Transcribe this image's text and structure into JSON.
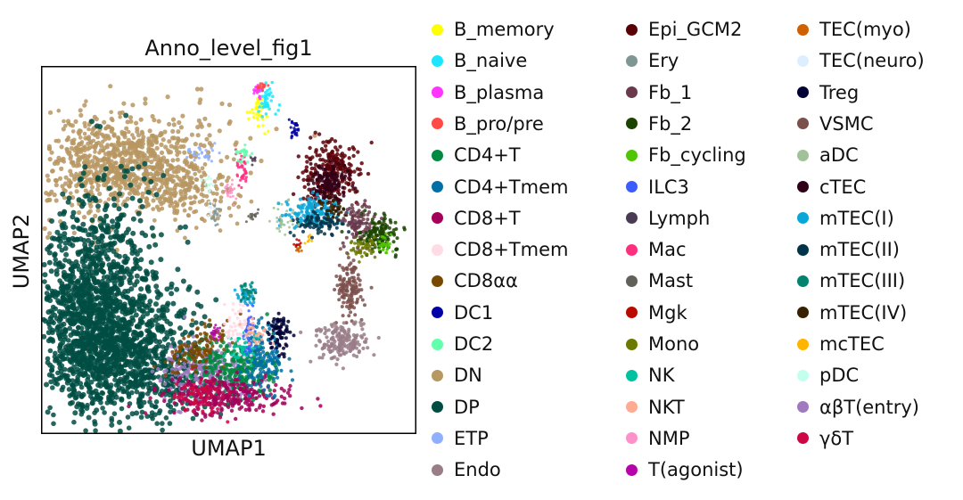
{
  "chart_data": {
    "type": "scatter",
    "title": "Anno_level_fig1",
    "xlabel": "UMAP1",
    "ylabel": "UMAP2",
    "grid": false,
    "xticks": false,
    "yticks": false,
    "legend_placement": "right, outside the plot, 3 columns",
    "legend": [
      {
        "name": "B_memory",
        "color": "#ffff00"
      },
      {
        "name": "B_naive",
        "color": "#1ce6ff"
      },
      {
        "name": "B_plasma",
        "color": "#ff34ff"
      },
      {
        "name": "B_pro/pre",
        "color": "#ff4a46"
      },
      {
        "name": "CD4+T",
        "color": "#008941"
      },
      {
        "name": "CD4+Tmem",
        "color": "#006fa6"
      },
      {
        "name": "CD8+T",
        "color": "#a30059"
      },
      {
        "name": "CD8+Tmem",
        "color": "#ffdbe5"
      },
      {
        "name": "CD8αα",
        "color": "#7a4900"
      },
      {
        "name": "DC1",
        "color": "#0000a6"
      },
      {
        "name": "DC2",
        "color": "#63ffac"
      },
      {
        "name": "DN",
        "color": "#b79762"
      },
      {
        "name": "DP",
        "color": "#004d43"
      },
      {
        "name": "ETP",
        "color": "#8fb0ff"
      },
      {
        "name": "Endo",
        "color": "#997d87"
      },
      {
        "name": "Epi_GCM2",
        "color": "#5a0007"
      },
      {
        "name": "Ery",
        "color": "#809693"
      },
      {
        "name": "Fb_1",
        "color": "#6a3a4c"
      },
      {
        "name": "Fb_2",
        "color": "#1b4400"
      },
      {
        "name": "Fb_cycling",
        "color": "#4fc601"
      },
      {
        "name": "ILC3",
        "color": "#3b5dff"
      },
      {
        "name": "Lymph",
        "color": "#4a3b53"
      },
      {
        "name": "Mac",
        "color": "#ff2f80"
      },
      {
        "name": "Mast",
        "color": "#61615a"
      },
      {
        "name": "Mgk",
        "color": "#ba0900"
      },
      {
        "name": "Mono",
        "color": "#6b7900"
      },
      {
        "name": "NK",
        "color": "#00c2a0"
      },
      {
        "name": "NKT",
        "color": "#ffaa92"
      },
      {
        "name": "NMP",
        "color": "#ff90c9"
      },
      {
        "name": "T(agonist)",
        "color": "#b903aa"
      },
      {
        "name": "TEC(myo)",
        "color": "#d16100"
      },
      {
        "name": "TEC(neuro)",
        "color": "#ddefff"
      },
      {
        "name": "Treg",
        "color": "#000035"
      },
      {
        "name": "VSMC",
        "color": "#7b4f4b"
      },
      {
        "name": "aDC",
        "color": "#a1c299"
      },
      {
        "name": "cTEC",
        "color": "#300018"
      },
      {
        "name": "mTEC(I)",
        "color": "#0aa6d8"
      },
      {
        "name": "mTEC(II)",
        "color": "#013349"
      },
      {
        "name": "mTEC(III)",
        "color": "#00846f"
      },
      {
        "name": "mTEC(IV)",
        "color": "#372101"
      },
      {
        "name": "mcTEC",
        "color": "#ffb500"
      },
      {
        "name": "pDC",
        "color": "#c2ffed"
      },
      {
        "name": "αβT(entry)",
        "color": "#a079bf"
      },
      {
        "name": "γδT",
        "color": "#cc0744"
      }
    ]
  }
}
